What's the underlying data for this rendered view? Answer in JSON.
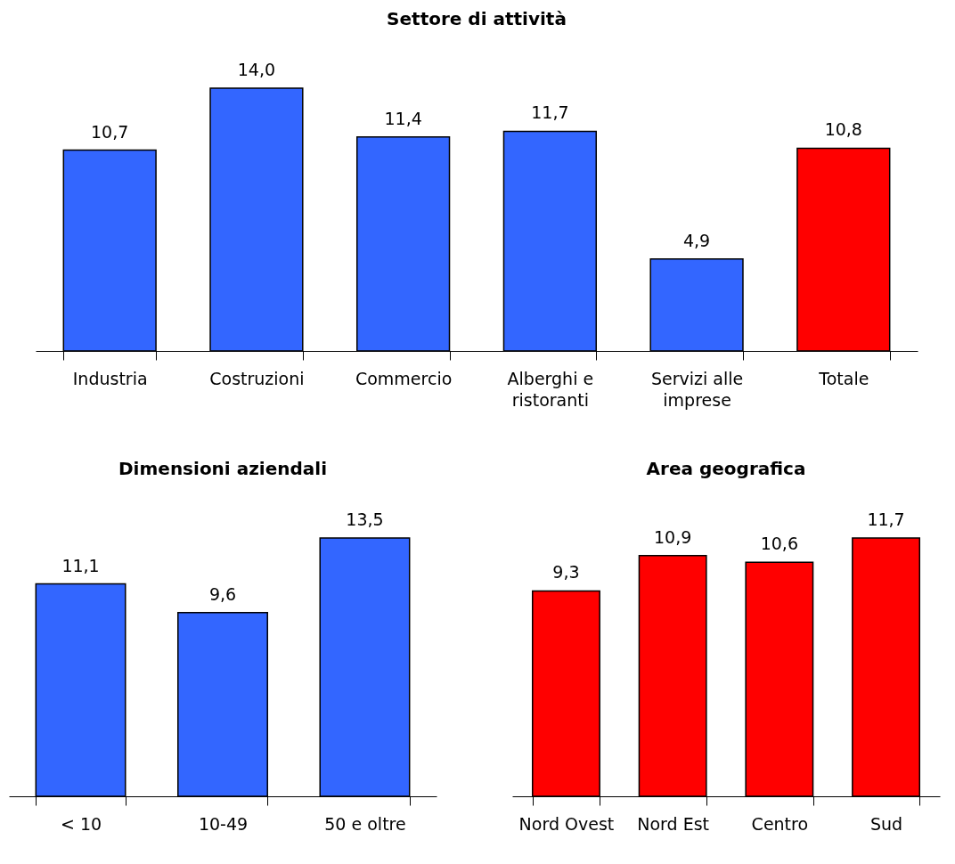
{
  "chart_data": [
    {
      "type": "bar",
      "title": "Settore di attività",
      "categories": [
        "Industria",
        "Costruzioni",
        "Commercio",
        "Alberghi e\nristoranti",
        "Servizi alle\nimprese",
        "Totale"
      ],
      "values": [
        10.7,
        14.0,
        11.4,
        11.7,
        4.9,
        10.8
      ],
      "colors": [
        "#3366ff",
        "#3366ff",
        "#3366ff",
        "#3366ff",
        "#3366ff",
        "#ff0000"
      ],
      "value_labels": [
        "10,7",
        "14,0",
        "11,4",
        "11,7",
        "4,9",
        "10,8"
      ]
    },
    {
      "type": "bar",
      "title": "Dimensioni aziendali",
      "categories": [
        "< 10",
        "10-49",
        "50 e oltre"
      ],
      "values": [
        11.1,
        9.6,
        13.5
      ],
      "colors": [
        "#3366ff",
        "#3366ff",
        "#3366ff"
      ],
      "value_labels": [
        "11,1",
        "9,6",
        "13,5"
      ]
    },
    {
      "type": "bar",
      "title": "Area geografica",
      "categories": [
        "Nord Ovest",
        "Nord Est",
        "Centro",
        "Sud"
      ],
      "values": [
        9.3,
        10.9,
        10.6,
        11.7
      ],
      "colors": [
        "#ff0000",
        "#ff0000",
        "#ff0000",
        "#ff0000"
      ],
      "value_labels": [
        "9,3",
        "10,9",
        "10,6",
        "11,7"
      ]
    }
  ]
}
